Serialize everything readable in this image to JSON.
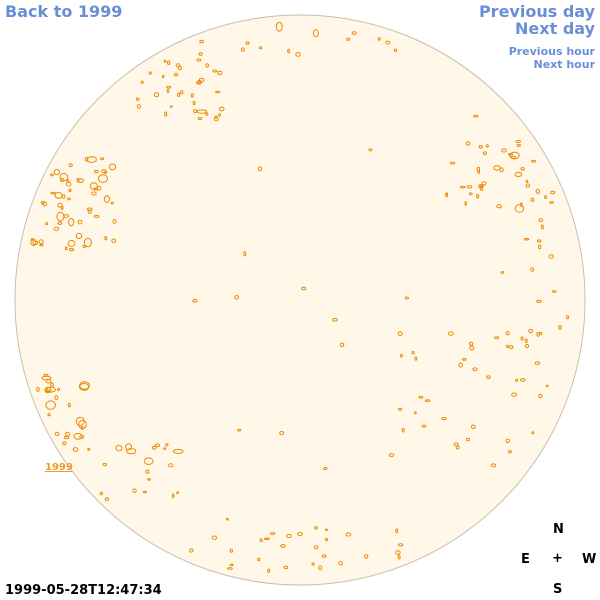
{
  "nav": {
    "back": "Back to 1999",
    "previous_day": "Previous day",
    "next_day": "Next day",
    "previous_hour": "Previous hour",
    "next_hour": "Next hour"
  },
  "timestamp": "1999-05-28T12:47:34",
  "compass": {
    "n": "N",
    "e": "E",
    "center": "+",
    "w": "W",
    "s": "S"
  },
  "sun": {
    "disk_fill": "#fff8e8",
    "limb_color": "#c8bfa8",
    "contour_color": "#ee8800",
    "region_label": "1999"
  }
}
